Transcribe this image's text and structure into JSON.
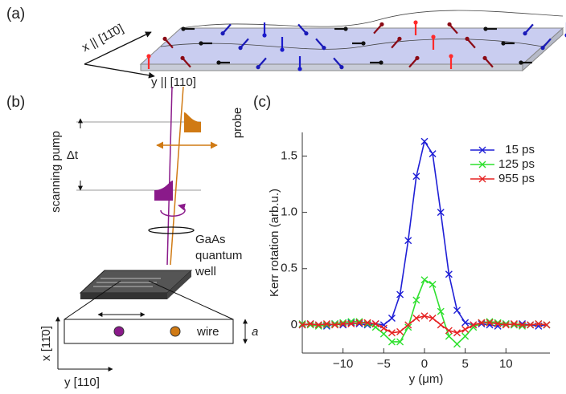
{
  "panel_labels": [
    "(a)",
    "(b)",
    "(c)"
  ],
  "diagram_a": {
    "x_axis": "x || [11̄0]",
    "y_axis": "y || [110]"
  },
  "diagram_b": {
    "probe": "probe",
    "delay": "Δt",
    "pump": "scanning pump",
    "sample": [
      "GaAs",
      "quantum",
      "well"
    ],
    "wire": "wire",
    "width": "a",
    "x_axis": "x [11̄0]",
    "y_axis": "y [110]"
  },
  "chart_data": {
    "type": "line",
    "xlabel": "y (μm)",
    "ylabel": "Kerr rotation (arb.u.)",
    "x": [
      -15,
      -14,
      -13,
      -12,
      -11,
      -10,
      -9,
      -8,
      -7,
      -6,
      -5,
      -4,
      -3,
      -2,
      -1,
      0,
      1,
      2,
      3,
      4,
      5,
      6,
      7,
      8,
      9,
      10,
      11,
      12,
      13,
      14,
      15
    ],
    "series": [
      {
        "name": "15 ps",
        "color": "#1f1fd6",
        "values": [
          0,
          0.01,
          0,
          -0.01,
          0.01,
          0,
          0.02,
          0.01,
          0,
          0.01,
          0,
          0.06,
          0.27,
          0.75,
          1.32,
          1.63,
          1.52,
          1.0,
          0.45,
          0.13,
          0.02,
          0,
          0.01,
          0,
          -0.01,
          0.01,
          0,
          0.01,
          0,
          -0.01,
          0
        ]
      },
      {
        "name": "125 ps",
        "color": "#2fe02f",
        "values": [
          0.01,
          0,
          -0.01,
          0,
          0.01,
          0.02,
          0.03,
          0.03,
          0.01,
          -0.02,
          -0.08,
          -0.15,
          -0.15,
          -0.02,
          0.22,
          0.4,
          0.36,
          0.12,
          -0.1,
          -0.17,
          -0.1,
          -0.02,
          0.02,
          0.03,
          0.02,
          0.01,
          0,
          -0.01,
          0,
          0.01,
          0
        ]
      },
      {
        "name": "955 ps",
        "color": "#e52222",
        "values": [
          0,
          0.01,
          0,
          0.01,
          0,
          0.01,
          0.01,
          0.02,
          0.02,
          0.01,
          -0.03,
          -0.07,
          -0.06,
          0,
          0.06,
          0.08,
          0.06,
          0,
          -0.05,
          -0.07,
          -0.04,
          0,
          0.02,
          0.02,
          0.01,
          0,
          0.01,
          0,
          0,
          0.01,
          0
        ]
      }
    ],
    "xlim": [
      -15,
      15.4
    ],
    "ylim": [
      -0.25,
      1.71
    ],
    "xticks": [
      {
        "value": -10,
        "label": "−10"
      },
      {
        "value": -5,
        "label": "−5"
      },
      0,
      5,
      10
    ],
    "yticks": [
      0,
      0.5,
      {
        "value": 1,
        "label": "1.0"
      },
      1.5
    ],
    "legend": "upper right",
    "markers": "x"
  }
}
